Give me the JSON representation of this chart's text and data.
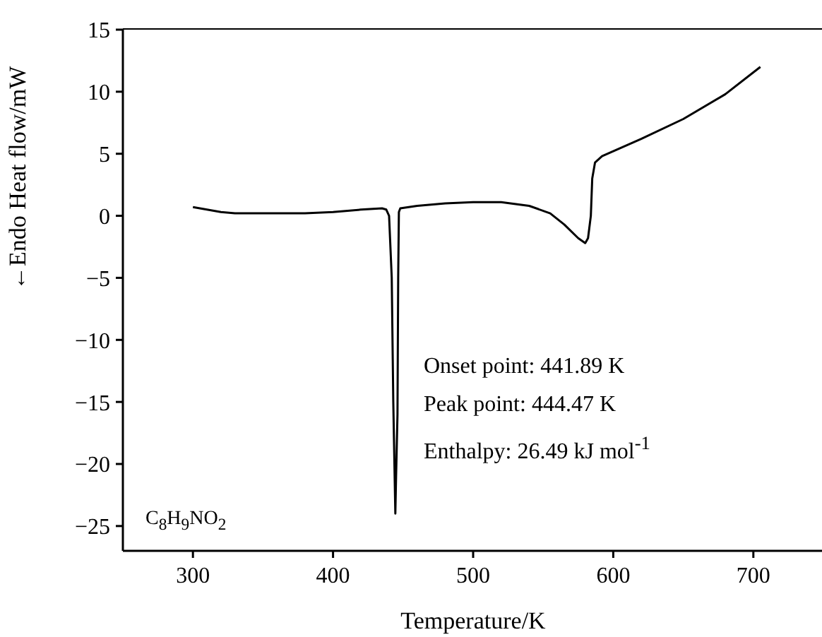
{
  "chart_data": {
    "type": "line",
    "xlabel": "Temperature/K",
    "ylabel": "←Endo Heat flow/mW",
    "x": [
      300,
      310,
      320,
      330,
      350,
      380,
      400,
      420,
      435,
      438,
      440,
      441.9,
      443,
      444.47,
      445,
      446,
      446.5,
      447,
      448,
      460,
      480,
      500,
      520,
      540,
      555,
      565,
      575,
      580,
      582,
      584,
      585,
      587,
      592,
      620,
      650,
      680,
      705
    ],
    "series": [
      {
        "color": "#000000",
        "values": [
          0.7,
          0.5,
          0.3,
          0.2,
          0.2,
          0.2,
          0.3,
          0.5,
          0.6,
          0.5,
          0,
          -5,
          -15,
          -24,
          -21,
          -16,
          -5,
          0.3,
          0.6,
          0.8,
          1.0,
          1.1,
          1.1,
          0.8,
          0.2,
          -0.7,
          -1.8,
          -2.2,
          -1.8,
          0,
          3,
          4.3,
          4.8,
          6.2,
          7.8,
          9.8,
          12.0
        ]
      }
    ],
    "xlim": [
      250,
      750
    ],
    "xticks": [
      300,
      400,
      500,
      600,
      700
    ],
    "ylim": [
      -27,
      15
    ],
    "yticks": [
      -25,
      -20,
      -15,
      -10,
      -5,
      0,
      5,
      10,
      15
    ],
    "annotations": [
      "Onset point: 441.89 K",
      "Peak point: 444.47 K",
      "Enthalpy: 26.49 kJ mol$^{-1}$",
      "C$_{8}$H$_{9}$NO$_{2}$"
    ],
    "grid": false,
    "legend": false,
    "marker": "none",
    "line_style": "solid"
  }
}
